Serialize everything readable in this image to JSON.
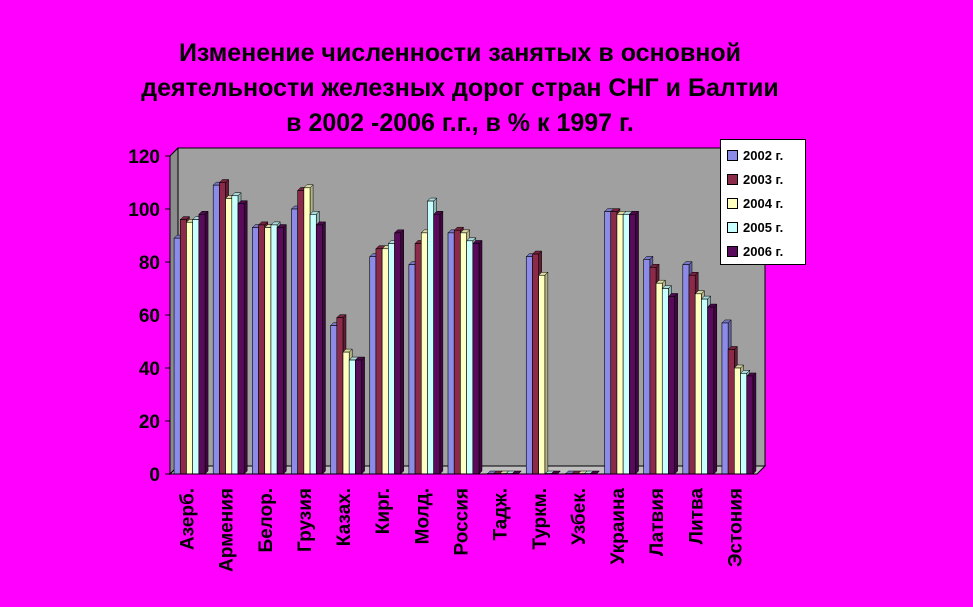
{
  "chart_data": {
    "type": "bar",
    "title": [
      "Изменение численности занятых в основной",
      "деятельности железных дорог стран СНГ и Балтии",
      "в 2002 -2006 г.г., в % к 1997 г."
    ],
    "categories": [
      "Азерб.",
      "Армения",
      "Белор.",
      "Грузия",
      "Казах.",
      "Кирг.",
      "Молд.",
      "Россия",
      "Тадж.",
      "Туркм.",
      "Узбек.",
      "Украина",
      "Латвия",
      "Литва",
      "Эстония"
    ],
    "series": [
      {
        "name": "2002 г.",
        "color": "#8c8ce8",
        "values": [
          89,
          109,
          93,
          100,
          56,
          82,
          79,
          91,
          0,
          82,
          0,
          99,
          81,
          79,
          57
        ]
      },
      {
        "name": "2003 г.",
        "color": "#8c2a4a",
        "values": [
          96,
          110,
          94,
          107,
          59,
          85,
          87,
          92,
          0,
          83,
          0,
          99,
          78,
          75,
          47
        ]
      },
      {
        "name": "2004 г.",
        "color": "#ffffc0",
        "values": [
          95,
          104,
          93,
          108,
          46,
          85,
          91,
          91,
          0,
          75,
          0,
          98,
          72,
          68,
          40
        ]
      },
      {
        "name": "2005 г.",
        "color": "#c8ffff",
        "values": [
          96,
          105,
          94,
          98,
          43,
          87,
          103,
          88,
          0,
          0,
          0,
          98,
          70,
          66,
          38
        ]
      },
      {
        "name": "2006 г.",
        "color": "#5a0a5a",
        "values": [
          98,
          102,
          93,
          94,
          43,
          91,
          98,
          87,
          0,
          0,
          0,
          98,
          67,
          63,
          37
        ]
      }
    ],
    "ylim": [
      0,
      120
    ],
    "yticks": [
      "0",
      "20",
      "40",
      "60",
      "80",
      "100",
      "120"
    ],
    "grid": false,
    "legend_position": "top-right"
  },
  "colors": {
    "background": "#ff00ff",
    "plot_area": "#a0a0a0",
    "gridline": "#000000"
  }
}
